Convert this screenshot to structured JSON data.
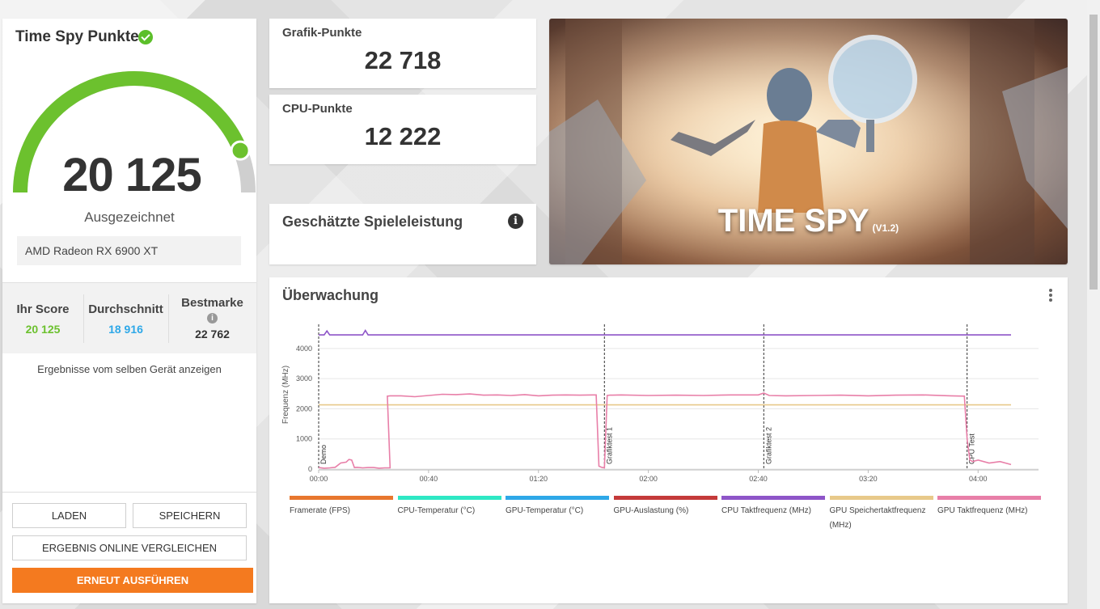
{
  "score_panel": {
    "title": "Time Spy Punkte",
    "score": "20 125",
    "rating": "Ausgezeichnet",
    "gpu": "AMD Radeon RX 6900 XT",
    "gauge_fill_fraction": 0.88,
    "stats": {
      "your_label": "Ihr Score",
      "your_value": "20 125",
      "avg_label": "Durchschnitt",
      "avg_value": "18 916",
      "best_label": "Bestmarke",
      "best_value": "22 762"
    },
    "same_device_link": "Ergebnisse vom selben Gerät anzeigen",
    "buttons": {
      "load": "LADEN",
      "save": "SPEICHERN",
      "compare": "ERGEBNIS ONLINE VERGLEICHEN",
      "rerun": "ERNEUT AUSFÜHREN"
    }
  },
  "graphics_card": {
    "label": "Grafik-Punkte",
    "value": "22 718"
  },
  "cpu_card": {
    "label": "CPU-Punkte",
    "value": "12 222"
  },
  "estimate_card": {
    "label": "Geschätzte Spieleleistung",
    "info": "i"
  },
  "hero": {
    "title": "TIME SPY",
    "version": "(V1.2)"
  },
  "monitoring": {
    "title": "Überwachung",
    "legend": [
      {
        "label": "Framerate (FPS)",
        "color": "#e8772e"
      },
      {
        "label": "CPU-Temperatur (°C)",
        "color": "#2ee8c4"
      },
      {
        "label": "GPU-Temperatur (°C)",
        "color": "#2ea8e8"
      },
      {
        "label": "GPU-Auslastung (%)",
        "color": "#c43a3a"
      },
      {
        "label": "CPU Taktfrequenz (MHz)",
        "color": "#8e55c8"
      },
      {
        "label": "GPU Speichertaktfrequenz (MHz)",
        "color": "#e8c98a"
      },
      {
        "label": "GPU Taktfrequenz (MHz)",
        "color": "#e87fa8"
      }
    ]
  },
  "chart_data": {
    "type": "line",
    "ylabel": "Frequenz (MHz)",
    "xlabel": "",
    "ylim": [
      0,
      4800
    ],
    "xlim": [
      0,
      262
    ],
    "x_ticks": [
      "00:00",
      "00:40",
      "01:20",
      "02:00",
      "02:40",
      "03:20",
      "04:00"
    ],
    "x_tick_values": [
      0,
      40,
      80,
      120,
      160,
      200,
      240
    ],
    "y_ticks": [
      0,
      1000,
      2000,
      3000,
      4000
    ],
    "markers": [
      {
        "label": "Demo",
        "x": 0
      },
      {
        "label": "Grafiktest 1",
        "x": 104
      },
      {
        "label": "Grafiktest 2",
        "x": 162
      },
      {
        "label": "CPU Test",
        "x": 236
      }
    ],
    "series": [
      {
        "name": "CPU Taktfrequenz (MHz)",
        "color": "#8e55c8",
        "x": [
          0,
          2,
          3,
          4,
          16,
          17,
          18,
          104,
          105,
          106,
          162,
          236,
          252
        ],
        "y": [
          4450,
          4450,
          4580,
          4450,
          4450,
          4600,
          4450,
          4450,
          4450,
          4450,
          4450,
          4450,
          4450
        ]
      },
      {
        "name": "GPU Speichertaktfrequenz (MHz)",
        "color": "#e8c98a",
        "x": [
          0,
          252
        ],
        "y": [
          2130,
          2130
        ]
      },
      {
        "name": "GPU Taktfrequenz (MHz)",
        "color": "#e87fa8",
        "x": [
          0,
          2,
          4,
          6,
          8,
          10,
          11,
          12,
          13,
          14,
          16,
          18,
          20,
          22,
          24,
          26,
          25,
          26,
          30,
          35,
          40,
          45,
          50,
          55,
          60,
          65,
          70,
          75,
          80,
          85,
          90,
          95,
          100,
          101,
          102,
          103,
          104,
          105,
          106,
          107,
          110,
          120,
          130,
          140,
          150,
          160,
          162,
          164,
          170,
          180,
          190,
          200,
          210,
          220,
          230,
          235,
          236,
          237,
          238,
          240,
          244,
          248,
          252
        ],
        "y": [
          50,
          30,
          40,
          60,
          200,
          230,
          320,
          300,
          50,
          60,
          40,
          50,
          50,
          30,
          40,
          40,
          2420,
          2430,
          2430,
          2400,
          2440,
          2480,
          2470,
          2490,
          2450,
          2460,
          2440,
          2470,
          2430,
          2450,
          2460,
          2450,
          2460,
          2460,
          100,
          60,
          40,
          2440,
          2450,
          2450,
          2460,
          2440,
          2450,
          2440,
          2460,
          2460,
          2520,
          2440,
          2430,
          2440,
          2450,
          2430,
          2450,
          2460,
          2430,
          2420,
          1000,
          300,
          250,
          300,
          200,
          250,
          150
        ]
      }
    ]
  }
}
